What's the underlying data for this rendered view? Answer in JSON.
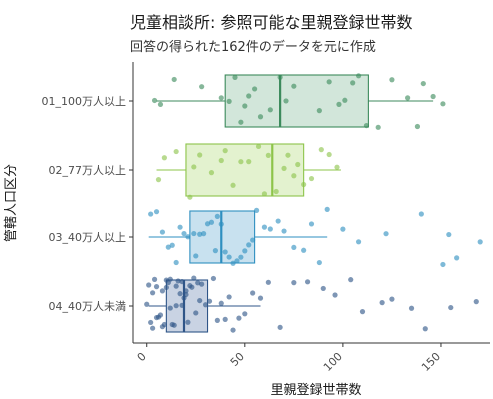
{
  "chart_data": {
    "type": "boxplot",
    "title": "児童相談所: 参照可能な里親登録世帯数",
    "subtitle": "回答の得られた162件のデータを元に作成",
    "xlabel": "里親登録世帯数",
    "ylabel": "管轄人口区分",
    "xlim": [
      -7,
      175
    ],
    "x_ticks": [
      0,
      50,
      100,
      150
    ],
    "orientation": "horizontal",
    "grid": false,
    "categories": [
      "01_100万人以上",
      "02_77万人以上",
      "03_40万人以上",
      "04_40万人未満"
    ],
    "colors": [
      "#3c8a5c",
      "#8dc44a",
      "#2e8fc0",
      "#2f5588"
    ],
    "fills": [
      "#d2e6da",
      "#e3f2cf",
      "#c8e1ef",
      "#c9d3e3"
    ],
    "boxes": [
      {
        "category": "01_100万人以上",
        "whisker_low": 5,
        "q1": 40,
        "median": 68,
        "q3": 113,
        "whisker_high": 146
      },
      {
        "category": "02_77万人以上",
        "whisker_low": 5,
        "q1": 20,
        "median": 64,
        "q3": 80,
        "whisker_high": 99
      },
      {
        "category": "03_40万人以上",
        "whisker_low": 1,
        "q1": 22,
        "median": 38,
        "q3": 55,
        "whisker_high": 92
      },
      {
        "category": "04_40万人未満",
        "whisker_low": 1,
        "q1": 10,
        "median": 19,
        "q3": 31,
        "whisker_high": 58
      }
    ],
    "points": [
      {
        "category": "01_100万人以上",
        "values": [
          4,
          7,
          14,
          28,
          38,
          42,
          45,
          48,
          50,
          52,
          55,
          58,
          63,
          68,
          71,
          75,
          88,
          93,
          98,
          101,
          105,
          108,
          112,
          118,
          125,
          133,
          138,
          141,
          146,
          151
        ]
      },
      {
        "category": "02_77万人以上",
        "values": [
          6,
          9,
          15,
          22,
          24,
          27,
          33,
          38,
          40,
          44,
          48,
          52,
          57,
          60,
          62,
          66,
          70,
          72,
          75,
          77,
          80,
          84,
          89,
          93,
          97
        ]
      },
      {
        "category": "03_40万人以上",
        "values": [
          2,
          5,
          8,
          11,
          13,
          15,
          17,
          19,
          21,
          24,
          25,
          27,
          29,
          31,
          33,
          35,
          36,
          38,
          40,
          42,
          44,
          46,
          48,
          50,
          52,
          54,
          56,
          60,
          63,
          67,
          70,
          75,
          80,
          84,
          88,
          92,
          100,
          108,
          122,
          140,
          151,
          154,
          158,
          170
        ]
      },
      {
        "category": "04_40万人未満",
        "values": [
          0,
          1,
          2,
          3,
          3,
          4,
          5,
          5,
          6,
          7,
          8,
          8,
          9,
          10,
          10,
          11,
          12,
          12,
          13,
          14,
          15,
          15,
          16,
          17,
          18,
          18,
          19,
          20,
          20,
          21,
          22,
          23,
          24,
          25,
          26,
          27,
          28,
          30,
          32,
          34,
          36,
          38,
          40,
          42,
          44,
          47,
          50,
          54,
          58,
          62,
          68,
          75,
          82,
          90,
          96,
          104,
          110,
          120,
          125,
          135,
          142,
          155,
          168
        ]
      }
    ]
  }
}
